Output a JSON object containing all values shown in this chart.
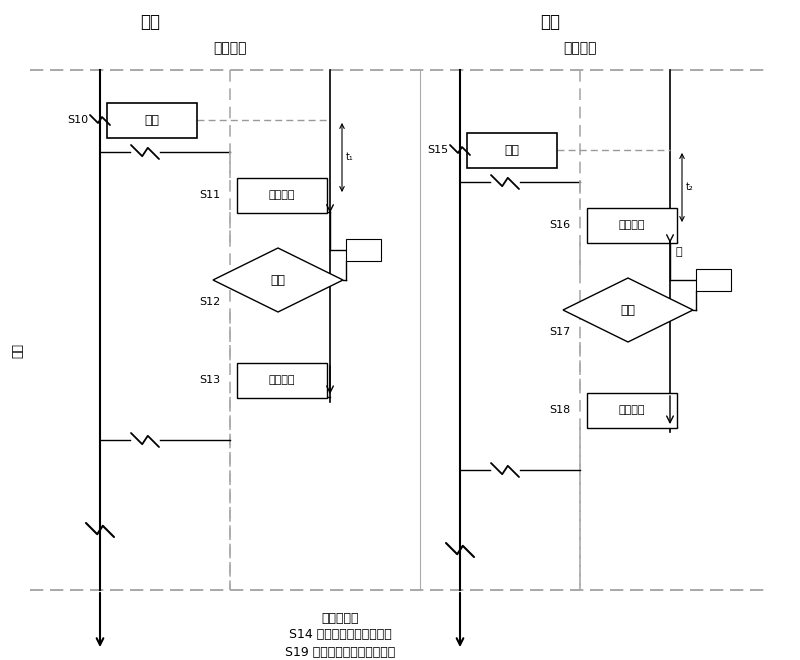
{
  "title_main": "主端",
  "title_slave": "从端",
  "label_master_time": "主端时间",
  "label_slave_time": "从端时间",
  "label_cycle": "回归",
  "label_bottom1": "下一个周期",
  "label_bottom2": "S14 主端完成测量数据传输",
  "label_bottom3": "S19 从端完成计算和时延补偿",
  "s10": "S10",
  "s11": "S11",
  "s12": "S12",
  "s13": "S13",
  "s15": "S15",
  "s16": "S16",
  "s17": "S17",
  "s18": "S18",
  "pulse": "脉冲",
  "send_frame": "发脉冲帧",
  "wait": "等待",
  "recv_frame": "收脉冲帧",
  "bg_color": "#ffffff",
  "line_color": "#000000",
  "gray_color": "#888888"
}
